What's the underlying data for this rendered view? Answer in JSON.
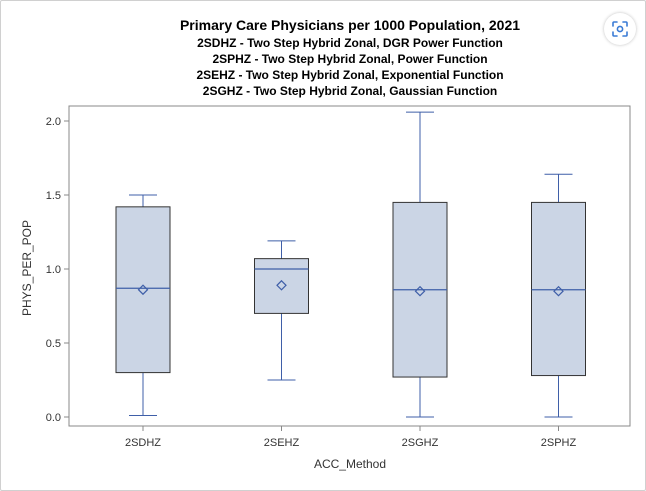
{
  "chart_data": {
    "type": "box",
    "title": "Primary Care Physicians per 1000 Population, 2021",
    "subtitles": [
      "2SDHZ - Two Step Hybrid Zonal, DGR Power Function",
      "2SPHZ - Two Step Hybrid Zonal, Power Function",
      "2SEHZ - Two Step Hybrid Zonal, Exponential Function",
      "2SGHZ - Two Step Hybrid Zonal, Gaussian Function"
    ],
    "xlabel": "ACC_Method",
    "ylabel": "PHYS_PER_POP",
    "ylim": [
      -0.05,
      2.15
    ],
    "yticks": [
      0.0,
      0.5,
      1.0,
      1.5,
      2.0
    ],
    "ytick_labels": [
      "0.0",
      "0.5",
      "1.0",
      "1.5",
      "2.0"
    ],
    "grid": false,
    "categories": [
      "2SDHZ",
      "2SEHZ",
      "2SGHZ",
      "2SPHZ"
    ],
    "boxes": [
      {
        "category": "2SDHZ",
        "min": 0.01,
        "q1": 0.3,
        "median": 0.87,
        "q3": 1.42,
        "max": 1.5,
        "mean": 0.86
      },
      {
        "category": "2SEHZ",
        "min": 0.25,
        "q1": 0.7,
        "median": 1.0,
        "q3": 1.07,
        "max": 1.19,
        "mean": 0.89
      },
      {
        "category": "2SGHZ",
        "min": 0.0,
        "q1": 0.27,
        "median": 0.86,
        "q3": 1.45,
        "max": 2.06,
        "mean": 0.85
      },
      {
        "category": "2SPHZ",
        "min": 0.0,
        "q1": 0.28,
        "median": 0.86,
        "q3": 1.45,
        "max": 1.64,
        "mean": 0.85
      }
    ],
    "colors": {
      "box_fill": "#cbd5e5",
      "box_edge": "#333333",
      "line": "#3f5fa8",
      "frame": "#888888"
    }
  },
  "toolbar": {
    "screenshot_icon": "camera-focus-icon"
  }
}
